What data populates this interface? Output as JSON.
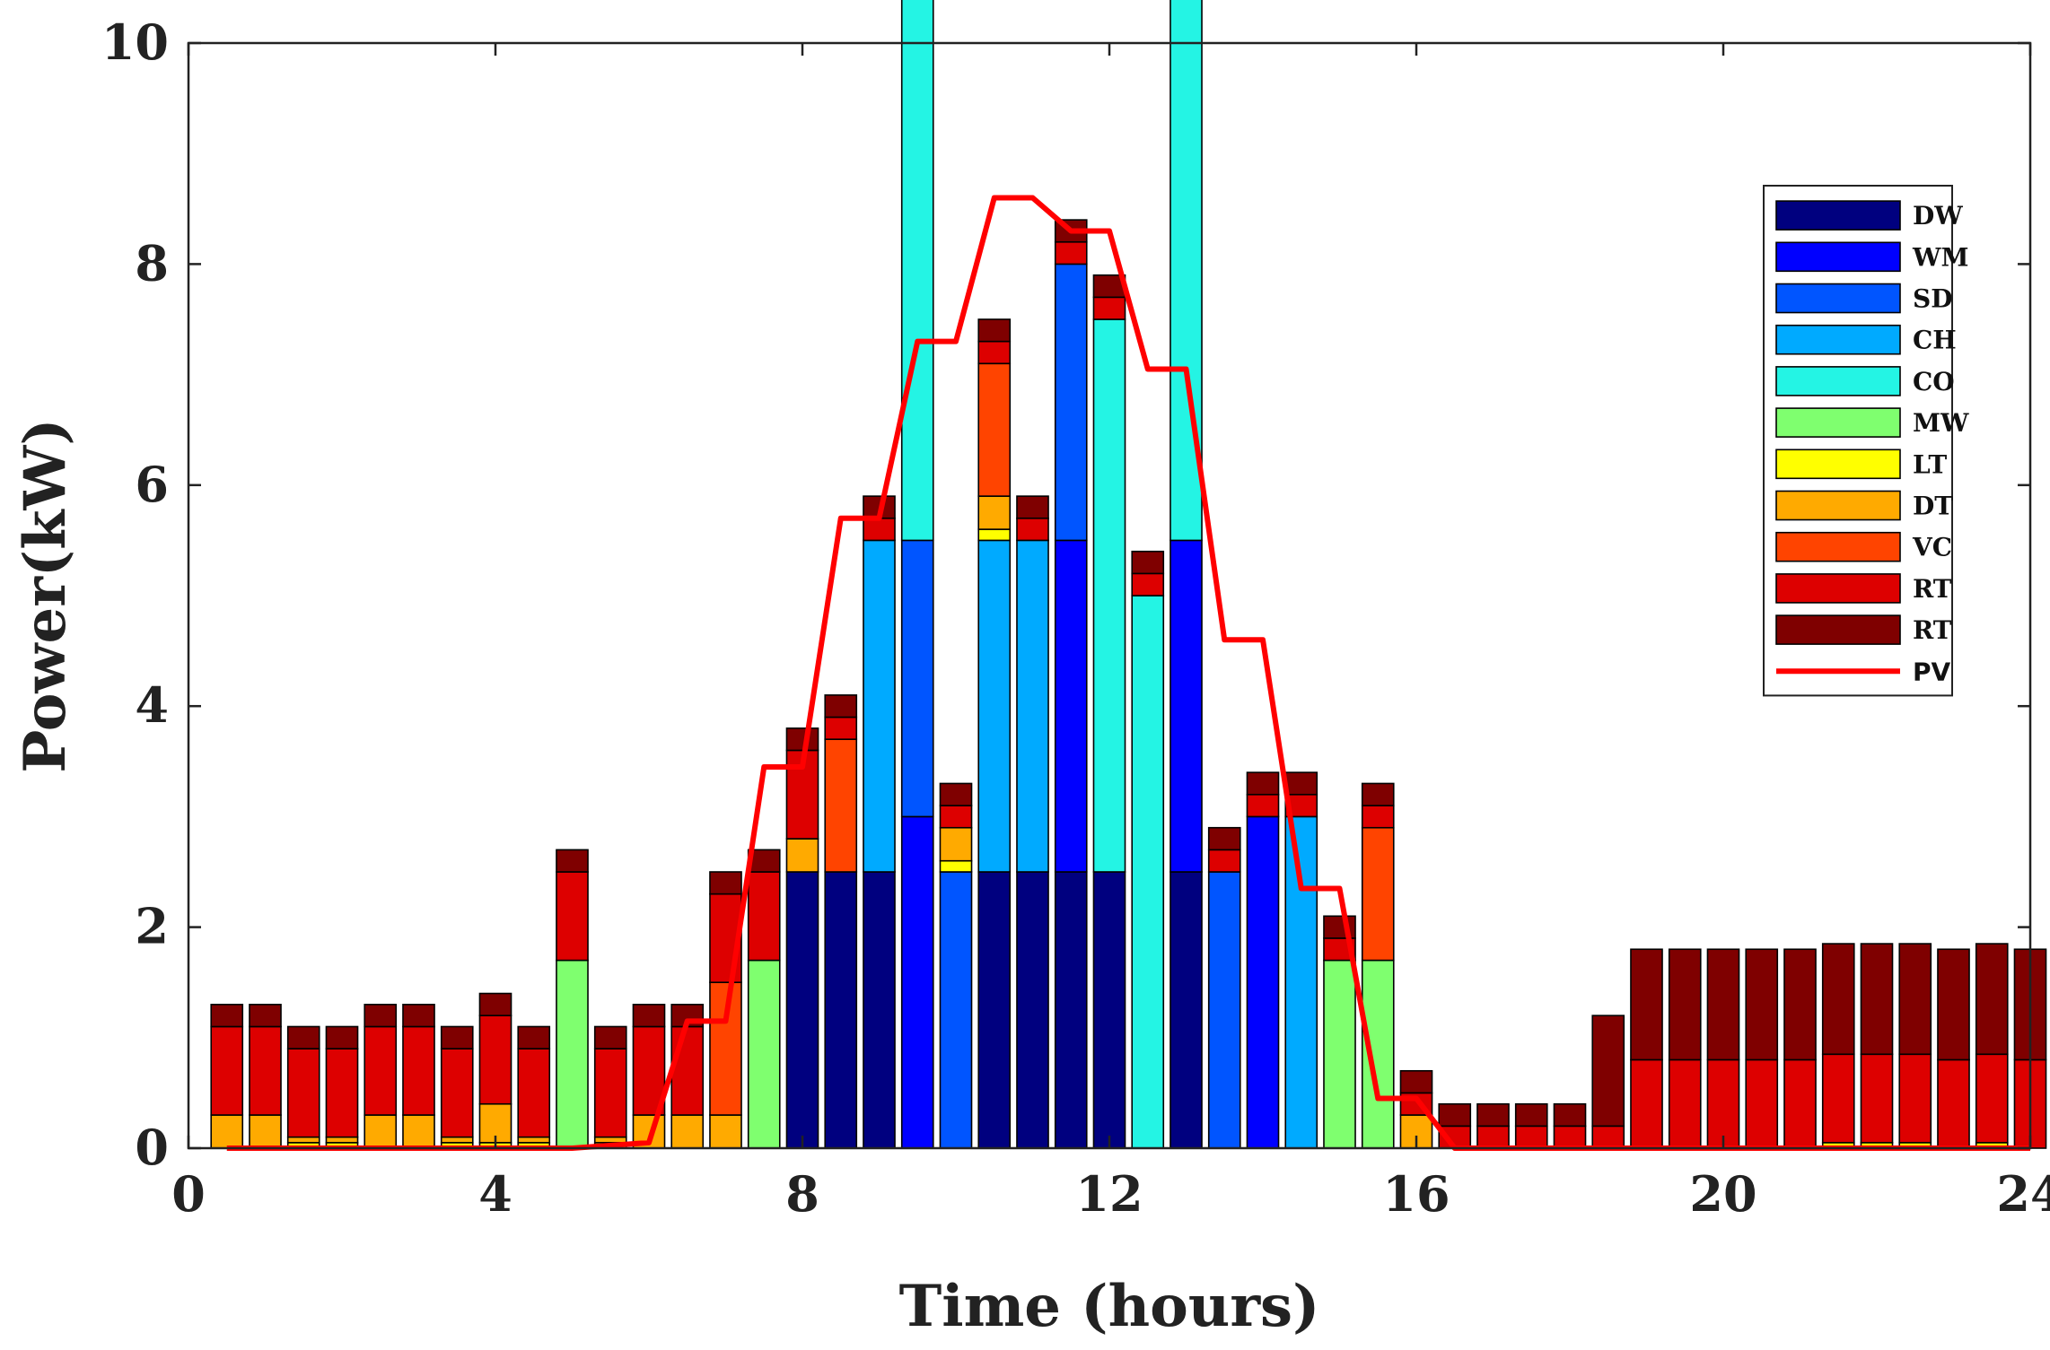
{
  "chart_data": {
    "type": "bar",
    "stacked": true,
    "xlabel": "Time (hours)",
    "ylabel": "Power(kW)",
    "xlim": [
      0,
      24
    ],
    "ylim": [
      0,
      10
    ],
    "xticks": [
      0,
      4,
      8,
      12,
      16,
      20,
      24
    ],
    "yticks": [
      0,
      2,
      4,
      6,
      8,
      10
    ],
    "x": [
      0.5,
      1,
      1.5,
      2,
      2.5,
      3,
      3.5,
      4,
      4.5,
      5,
      5.5,
      6,
      6.5,
      7,
      7.5,
      8,
      8.5,
      9,
      9.5,
      10,
      10.5,
      11,
      11.5,
      12,
      12.5,
      13,
      13.5,
      14,
      14.5,
      15,
      15.5,
      16,
      16.5,
      17,
      17.5,
      18,
      18.5,
      19,
      19.5,
      20,
      20.5,
      21,
      21.5,
      22,
      22.5,
      23,
      23.5,
      24
    ],
    "series": [
      {
        "name": "DW",
        "color": "#00007f",
        "values": [
          0,
          0,
          0,
          0,
          0,
          0,
          0,
          0,
          0,
          0,
          0,
          0,
          0,
          0,
          0,
          2.5,
          2.5,
          2.5,
          0,
          0,
          2.5,
          2.5,
          2.5,
          2.5,
          0,
          2.5,
          0,
          0,
          0,
          0,
          0,
          0,
          0,
          0,
          0,
          0,
          0,
          0,
          0,
          0,
          0,
          0,
          0,
          0,
          0,
          0,
          0,
          0
        ]
      },
      {
        "name": "WM",
        "color": "#0000ff",
        "values": [
          0,
          0,
          0,
          0,
          0,
          0,
          0,
          0,
          0,
          0,
          0,
          0,
          0,
          0,
          0,
          0,
          0,
          0,
          3,
          0,
          0,
          0,
          3,
          0,
          0,
          3,
          0,
          3,
          0,
          0,
          0,
          0,
          0,
          0,
          0,
          0,
          0,
          0,
          0,
          0,
          0,
          0,
          0,
          0,
          0,
          0,
          0,
          0
        ]
      },
      {
        "name": "SD",
        "color": "#0055ff",
        "values": [
          0,
          0,
          0,
          0,
          0,
          0,
          0,
          0,
          0,
          0,
          0,
          0,
          0,
          0,
          0,
          0,
          0,
          0,
          2.5,
          2.5,
          0,
          0,
          2.5,
          0,
          0,
          0,
          2.5,
          0,
          0,
          0,
          0,
          0,
          0,
          0,
          0,
          0,
          0,
          0,
          0,
          0,
          0,
          0,
          0,
          0,
          0,
          0,
          0,
          0
        ]
      },
      {
        "name": "CH",
        "color": "#00aaff",
        "values": [
          0,
          0,
          0,
          0,
          0,
          0,
          0,
          0,
          0,
          0,
          0,
          0,
          0,
          0,
          0,
          0,
          0,
          3,
          0,
          0,
          3,
          3,
          0,
          0,
          0,
          0,
          0,
          0,
          3,
          0,
          0,
          0,
          0,
          0,
          0,
          0,
          0,
          0,
          0,
          0,
          0,
          0,
          0,
          0,
          0,
          0,
          0,
          0
        ]
      },
      {
        "name": "CO",
        "color": "#24f4e4",
        "values": [
          0,
          0,
          0,
          0,
          0,
          0,
          0,
          0,
          0,
          0,
          0,
          0,
          0,
          0,
          0,
          0,
          0,
          0,
          5,
          0,
          0,
          0,
          0,
          5,
          5,
          5,
          0,
          0,
          0,
          0,
          0,
          0,
          0,
          0,
          0,
          0,
          0,
          0,
          0,
          0,
          0,
          0,
          0,
          0,
          0,
          0,
          0,
          0
        ]
      },
      {
        "name": "MW",
        "color": "#7fff6f",
        "values": [
          0,
          0,
          0,
          0,
          0,
          0,
          0,
          0,
          0,
          1.7,
          0,
          0,
          0,
          0,
          1.7,
          0,
          0,
          0,
          0,
          0,
          0,
          0,
          0,
          0,
          0,
          0,
          0,
          0,
          0,
          1.7,
          1.7,
          0,
          0,
          0,
          0,
          0,
          0,
          0,
          0,
          0,
          0,
          0,
          0,
          0,
          0,
          0,
          0,
          0
        ]
      },
      {
        "name": "LT",
        "color": "#ffff00",
        "values": [
          0,
          0,
          0.05,
          0.05,
          0,
          0,
          0.05,
          0.05,
          0.05,
          0,
          0.05,
          0,
          0,
          0,
          0,
          0,
          0,
          0,
          0,
          0.1,
          0.1,
          0,
          0,
          0,
          0,
          0,
          0,
          0,
          0,
          0,
          0,
          0,
          0,
          0,
          0,
          0,
          0,
          0,
          0,
          0,
          0,
          0,
          0.05,
          0.05,
          0.05,
          0,
          0.05,
          0
        ]
      },
      {
        "name": "DT",
        "color": "#ffaa00",
        "values": [
          0.3,
          0.3,
          0.05,
          0.05,
          0.3,
          0.3,
          0.05,
          0.35,
          0.05,
          0,
          0.05,
          0.3,
          0.3,
          0.3,
          0,
          0.3,
          0,
          0,
          0,
          0.3,
          0.3,
          0,
          0,
          0,
          0,
          0,
          0,
          0,
          0,
          0,
          0,
          0.3,
          0,
          0,
          0,
          0,
          0,
          0,
          0,
          0,
          0,
          0,
          0,
          0,
          0,
          0,
          0,
          0
        ]
      },
      {
        "name": "VC",
        "color": "#ff4400",
        "values": [
          0,
          0,
          0,
          0,
          0,
          0,
          0,
          0,
          0,
          0,
          0,
          0,
          0,
          1.2,
          0,
          0,
          1.2,
          0,
          0,
          0,
          1.2,
          0,
          0,
          0,
          0,
          0,
          0,
          0,
          0,
          0,
          1.2,
          0,
          0,
          0,
          0,
          0,
          0,
          0,
          0,
          0,
          0,
          0,
          0,
          0,
          0,
          0,
          0,
          0
        ]
      },
      {
        "name": "RT",
        "color": "#dd0000",
        "values": [
          0.8,
          0.8,
          0.8,
          0.8,
          0.8,
          0.8,
          0.8,
          0.8,
          0.8,
          0.8,
          0.8,
          0.8,
          0.8,
          0.8,
          0.8,
          0.8,
          0.2,
          0.2,
          0.2,
          0.2,
          0.2,
          0.2,
          0.2,
          0.2,
          0.2,
          0.2,
          0.2,
          0.2,
          0.2,
          0.2,
          0.2,
          0.2,
          0.2,
          0.2,
          0.2,
          0.2,
          0.2,
          0.8,
          0.8,
          0.8,
          0.8,
          0.8,
          0.8,
          0.8,
          0.8,
          0.8,
          0.8,
          0.8
        ]
      },
      {
        "name": "RT",
        "color": "#7f0000",
        "values": [
          0.2,
          0.2,
          0.2,
          0.2,
          0.2,
          0.2,
          0.2,
          0.2,
          0.2,
          0.2,
          0.2,
          0.2,
          0.2,
          0.2,
          0.2,
          0.2,
          0.2,
          0.2,
          0.2,
          0.2,
          0.2,
          0.2,
          0.2,
          0.2,
          0.2,
          0.2,
          0.2,
          0.2,
          0.2,
          0.2,
          0.2,
          0.2,
          0.2,
          0.2,
          0.2,
          0.2,
          1.0,
          1.0,
          1.0,
          1.0,
          1.0,
          1.0,
          1.0,
          1.0,
          1.0,
          1.0,
          1.0,
          1.0
        ]
      }
    ],
    "line_series": {
      "name": "PV",
      "color": "#ff0000",
      "x": [
        0.5,
        5,
        6,
        6.5,
        7,
        7.5,
        8,
        8.5,
        9,
        9.5,
        10,
        10.5,
        11,
        11.5,
        12,
        12.5,
        13,
        13.5,
        14,
        14.5,
        15,
        15.5,
        16,
        16.5,
        24
      ],
      "y": [
        0,
        0,
        0.05,
        1.15,
        1.15,
        3.45,
        3.45,
        5.7,
        5.7,
        7.3,
        7.3,
        8.6,
        8.6,
        8.3,
        8.3,
        7.05,
        7.05,
        4.6,
        4.6,
        2.35,
        2.35,
        0.45,
        0.45,
        0,
        0
      ]
    },
    "legend": [
      "DW",
      "WM",
      "SD",
      "CH",
      "CO",
      "MW",
      "LT",
      "DT",
      "VC",
      "RT",
      "RT",
      "PV"
    ],
    "legend_placement": "upper-right",
    "grid": false
  }
}
